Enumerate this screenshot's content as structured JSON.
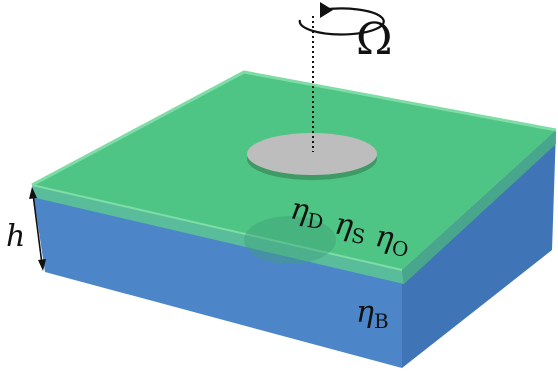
{
  "labels": {
    "omega": "Ω",
    "thickness": "h",
    "eta_symbol": "η",
    "sub_D": "D",
    "sub_S": "S",
    "sub_O": "O",
    "sub_B": "B"
  },
  "colors": {
    "membrane_top": "#4fc585",
    "membrane_edge": "#6fd89a",
    "bulk_front": "#4d86c8",
    "bulk_right": "#3f74b6",
    "interface_green": "#49b98c",
    "disk_fill": "#bdbdbd",
    "disk_rim": "#3f9a66",
    "ink": "#111111"
  }
}
